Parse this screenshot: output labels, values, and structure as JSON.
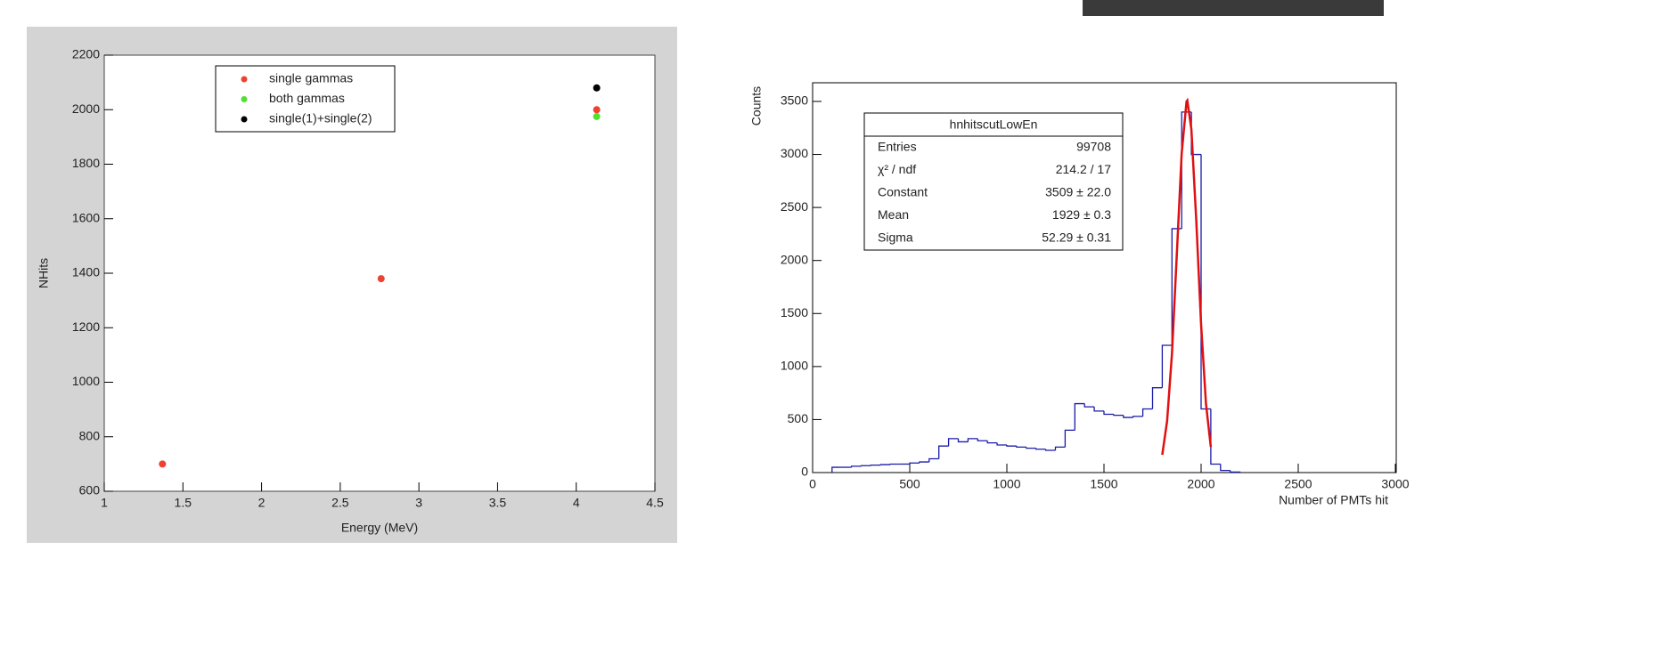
{
  "chart_data": [
    {
      "type": "scatter",
      "xlabel": "Energy (MeV)",
      "ylabel": "NHits",
      "xlim": [
        1,
        4.5
      ],
      "xticks": [
        1,
        1.5,
        2,
        2.5,
        3,
        3.5,
        4,
        4.5
      ],
      "ylim": [
        600,
        2200
      ],
      "yticks": [
        600,
        800,
        1000,
        1200,
        1400,
        1600,
        1800,
        2000,
        2200
      ],
      "legend": "top",
      "series": [
        {
          "name": "single gammas",
          "color": "#f04030",
          "x": [
            1.37,
            2.76,
            4.13
          ],
          "values": [
            700,
            1380,
            2000
          ]
        },
        {
          "name": "both gammas",
          "color": "#50e030",
          "x": [
            4.13
          ],
          "values": [
            1975
          ]
        },
        {
          "name": "single(1)+single(2)",
          "color": "#000000",
          "x": [
            4.13
          ],
          "values": [
            2080
          ]
        }
      ]
    },
    {
      "type": "histogram",
      "xlabel": "Number of PMTs hit",
      "ylabel": "Counts",
      "xlim": [
        0,
        3000
      ],
      "xticks": [
        0,
        500,
        1000,
        1500,
        2000,
        2500,
        3000
      ],
      "ylim": [
        0,
        3676
      ],
      "yticks": [
        0,
        500,
        1000,
        1500,
        2000,
        2500,
        3000,
        3500
      ],
      "color": "#1a1aa8",
      "bins": [
        100,
        150,
        200,
        250,
        300,
        350,
        400,
        450,
        500,
        550,
        600,
        650,
        700,
        750,
        800,
        850,
        900,
        950,
        1000,
        1050,
        1100,
        1150,
        1200,
        1250,
        1300,
        1350,
        1400,
        1450,
        1500,
        1550,
        1600,
        1650,
        1700,
        1750,
        1800,
        1850,
        1900,
        1950,
        2000,
        2050,
        2100,
        2150,
        2200
      ],
      "counts": [
        50,
        50,
        60,
        65,
        70,
        75,
        80,
        80,
        90,
        100,
        130,
        250,
        320,
        290,
        320,
        300,
        280,
        260,
        250,
        240,
        230,
        220,
        210,
        240,
        400,
        650,
        620,
        580,
        550,
        540,
        520,
        530,
        600,
        800,
        1200,
        2300,
        3400,
        3000,
        600,
        80,
        20,
        5
      ],
      "fit": {
        "color": "#e01010",
        "x": [
          1800,
          1825,
          1850,
          1875,
          1900,
          1925,
          1929,
          1950,
          1975,
          2000,
          2025,
          2050
        ],
        "values": [
          167,
          486,
          1121,
          2059,
          3009,
          3499,
          3509,
          3237,
          2383,
          1396,
          651,
          241
        ]
      },
      "stats": {
        "title": "hnhitscutLowEn",
        "rows": [
          [
            "Entries",
            "99708"
          ],
          [
            "χ² / ndf",
            "214.2 / 17"
          ],
          [
            "Constant",
            "3509 ± 22.0"
          ],
          [
            "Mean",
            "1929 ± 0.3"
          ],
          [
            "Sigma",
            "52.29 ± 0.31"
          ]
        ]
      }
    }
  ]
}
